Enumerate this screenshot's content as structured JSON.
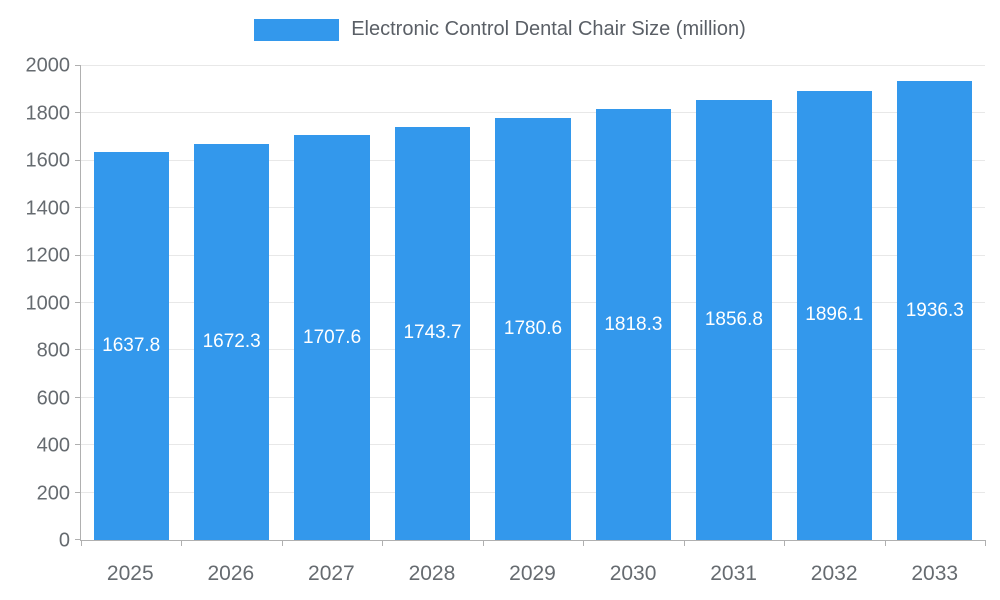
{
  "chart_data": {
    "type": "bar",
    "title": "Electronic Control Dental Chair Size (million)",
    "categories": [
      "2025",
      "2026",
      "2027",
      "2028",
      "2029",
      "2030",
      "2031",
      "2032",
      "2033"
    ],
    "values": [
      1637.8,
      1672.3,
      1707.6,
      1743.7,
      1780.6,
      1818.3,
      1856.8,
      1896.1,
      1936.3
    ],
    "xlabel": "",
    "ylabel": "",
    "ylim": [
      0,
      2000
    ],
    "ytick_step": 200,
    "grid": true,
    "legend_position": "top-center",
    "colors": {
      "bar": "#3398EC",
      "value_label": "#ffffff",
      "axis_text": "#666b70",
      "gridline": "#e8e8e8",
      "axis_line": "#b0b0b0",
      "legend_text": "#5a5f66"
    }
  }
}
